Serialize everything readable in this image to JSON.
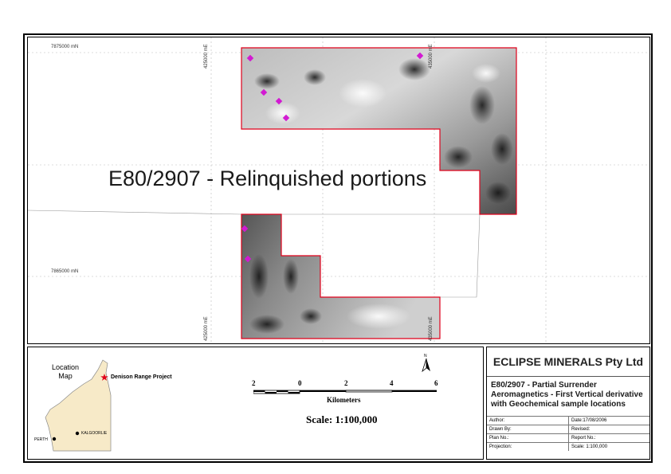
{
  "map": {
    "title": "E80/2907 - Relinquished portions",
    "northings": [
      "7875000 mN",
      "7865000 mN"
    ],
    "eastings_top": [
      "425000 mE",
      "435000 mE"
    ],
    "eastings_bottom": [
      "425000 mE",
      "435000 mE"
    ],
    "boundary_color": "#e0001a",
    "sample_marker_color": "#d21ad2",
    "sample_points_count": 7
  },
  "location_map": {
    "label_line1": "Location",
    "label_line2": "Map",
    "project_label": "Denison Range Project",
    "towns": [
      "PERTH",
      "KALGOORLIE"
    ],
    "project_marker_color": "#e0001a",
    "state_fill": "#f7eac8"
  },
  "scale_bar": {
    "ticks": [
      "2",
      "0",
      "2",
      "4",
      "6"
    ],
    "units": "Kilometers",
    "scale_text": "Scale: 1:100,000",
    "north_label": "N"
  },
  "title_block": {
    "company": "ECLIPSE MINERALS Pty Ltd",
    "subtitle_line1": "E80/2907 - Partial Surrender",
    "subtitle_line2": "Aeromagnetics - First Vertical derivative",
    "subtitle_line3": "with Geochemical sample locations",
    "rows": [
      [
        "Author:",
        "Date:17/08/2006"
      ],
      [
        "Drawn By:",
        "Revised:"
      ],
      [
        "Plan No.:",
        "Report No.:"
      ],
      [
        "Projection:",
        "Scale: 1:100,000"
      ]
    ]
  }
}
